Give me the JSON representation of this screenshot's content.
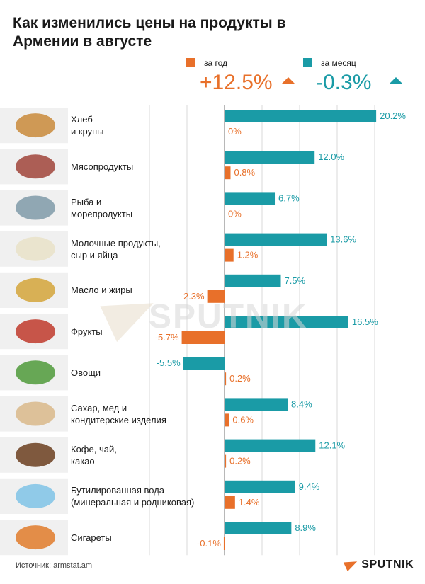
{
  "title": "Как изменились цены на продукты в Армении в августе",
  "legend": {
    "year_label": "за год",
    "month_label": "за месяц",
    "year_total": "+12.5%",
    "month_total": "-0.3%"
  },
  "colors": {
    "year": "#e8702a",
    "month": "#1a9ba6",
    "grid": "#d9d9d9",
    "row_band": "#f0f0f0"
  },
  "chart_data": {
    "type": "bar",
    "orientation": "horizontal",
    "categories": [
      "Хлеб и крупы",
      "Мясопродукты",
      "Рыба и морепродукты",
      "Молочные продукты, сыр и яйца",
      "Масло и жиры",
      "Фрукты",
      "Овощи",
      "Сахар, мед и кондитерские изделия",
      "Кофе, чай, какао",
      "Бутилированная вода (минеральная и родниковая)",
      "Сигареты"
    ],
    "label_lines": [
      [
        "Хлеб",
        "и крупы"
      ],
      [
        "Мясопродукты"
      ],
      [
        "Рыба и",
        "морепродукты"
      ],
      [
        "Молочные продукты,",
        "сыр и яйца"
      ],
      [
        "Масло и жиры"
      ],
      [
        "Фрукты"
      ],
      [
        "Овощи"
      ],
      [
        "Сахар, мед и",
        "кондитерские изделия"
      ],
      [
        "Кофе, чай,",
        "какао"
      ],
      [
        "Бутилированная вода",
        "(минеральная и родниковая)"
      ],
      [
        "Сигареты"
      ]
    ],
    "series": [
      {
        "name": "за год",
        "color": "#e8702a",
        "values": [
          0,
          0.8,
          0,
          1.2,
          -2.3,
          -5.7,
          0.2,
          0.6,
          0.2,
          1.4,
          -0.1
        ],
        "labels": [
          "0%",
          "0.8%",
          "0%",
          "1.2%",
          "-2.3%",
          "-5.7%",
          "0.2%",
          "0.6%",
          "0.2%",
          "1.4%",
          "-0.1%"
        ]
      },
      {
        "name": "за месяц",
        "color": "#1a9ba6",
        "values": [
          20.2,
          12.0,
          6.7,
          13.6,
          7.5,
          16.5,
          -5.5,
          8.4,
          12.1,
          9.4,
          8.9
        ],
        "labels": [
          "20.2%",
          "12.0%",
          "6.7%",
          "13.6%",
          "7.5%",
          "16.5%",
          "-5.5%",
          "8.4%",
          "12.1%",
          "9.4%",
          "8.9%"
        ]
      }
    ],
    "xlim": [
      -12,
      24
    ],
    "grid": true
  },
  "source": "Источник: armstat.am",
  "logo": "SPUTNIK",
  "watermark": "SPUTNIK",
  "icons": [
    "bread-icon",
    "meat-icon",
    "fish-icon",
    "dairy-icon",
    "oil-bottle-icon",
    "fruits-icon",
    "vegetables-icon",
    "sugar-sacks-icon",
    "coffee-beans-icon",
    "water-bottles-icon",
    "cigarettes-icon"
  ]
}
